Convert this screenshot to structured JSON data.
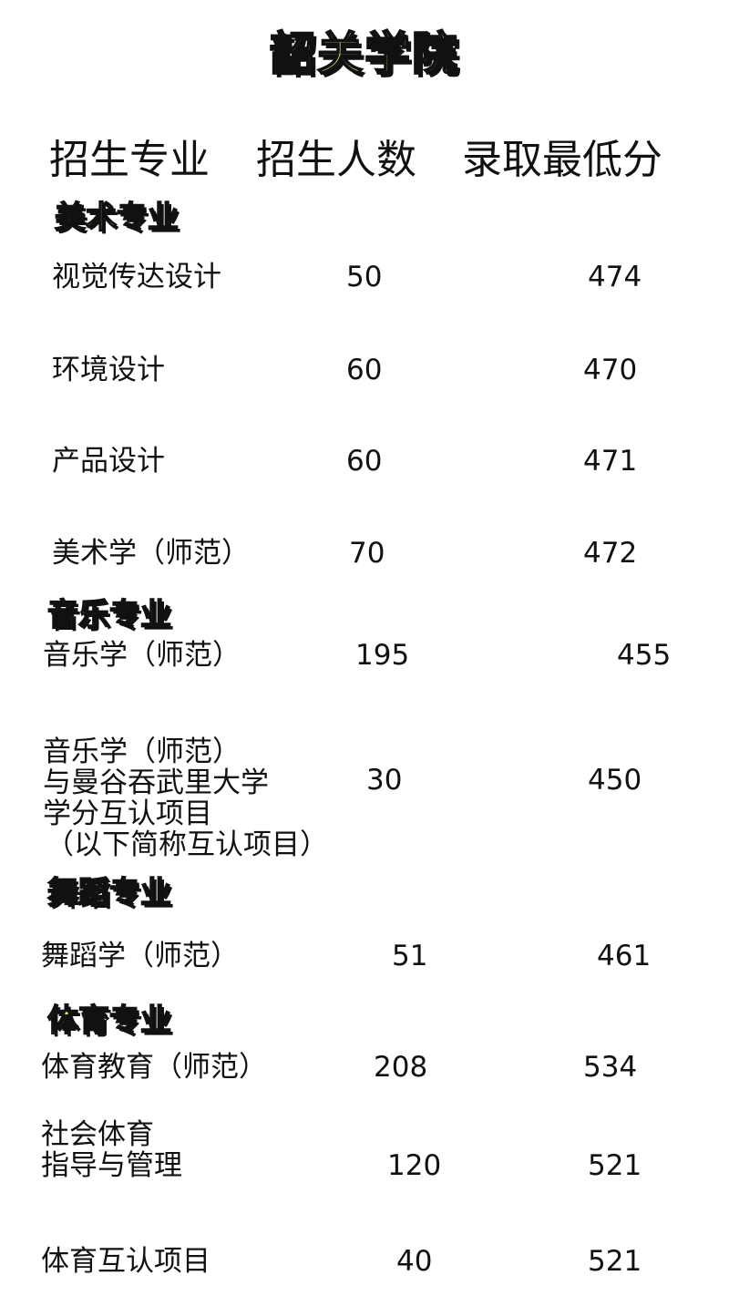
{
  "title": "韶关学院",
  "headers": [
    "招生专业",
    "招生人数",
    "录取最低分"
  ],
  "sections": [
    {
      "name": "美术专业",
      "rows": [
        {
          "major": "视觉传达设计",
          "count": "50",
          "score": "474"
        },
        {
          "major": "环境设计",
          "count": "60",
          "score": "470"
        },
        {
          "major": "产品设计",
          "count": "60",
          "score": "471"
        },
        {
          "major": "美术学（师范）",
          "count": "70",
          "score": "472"
        }
      ]
    },
    {
      "name": "音乐专业",
      "rows": [
        {
          "major": "音乐学（师范）",
          "count": "195",
          "score": "455"
        },
        {
          "major_lines": [
            "音乐学（师范）",
            "与曼谷吞武里大学",
            "学分互认项目",
            "（以下简称互认项目）"
          ],
          "count": "30",
          "score": "450"
        }
      ]
    },
    {
      "name": "舞蹈专业",
      "rows": [
        {
          "major": "舞蹈学（师范）",
          "count": "51",
          "score": "461"
        }
      ]
    },
    {
      "name": "体育专业",
      "rows": [
        {
          "major": "体育教育（师范）",
          "count": "208",
          "score": "534"
        },
        {
          "major_lines": [
            "社会体育",
            "指导与管理"
          ],
          "count": "120",
          "score": "521"
        },
        {
          "major": "体育互认项目",
          "count": "40",
          "score": "521"
        }
      ]
    }
  ]
}
